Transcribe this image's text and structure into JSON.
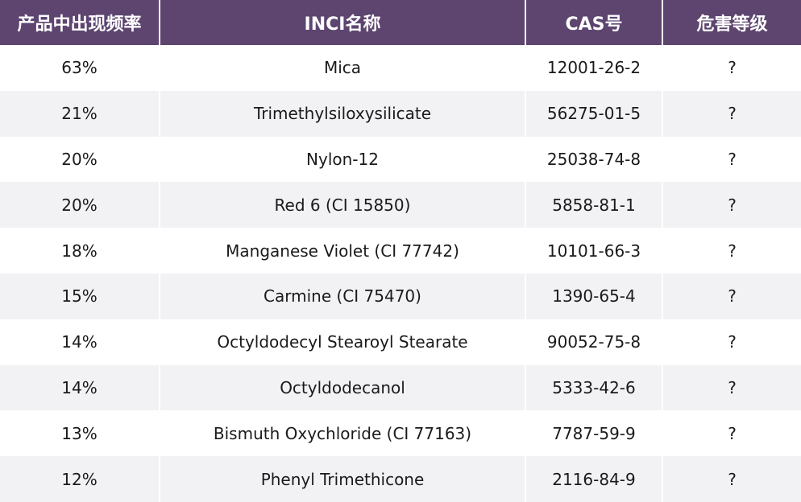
{
  "table": {
    "headers": {
      "frequency": "产品中出现频率",
      "inci": "INCI名称",
      "cas": "CAS号",
      "hazard": "危害等级"
    },
    "rows": [
      {
        "frequency": "63%",
        "inci": "Mica",
        "cas": "12001-26-2",
        "hazard": "?"
      },
      {
        "frequency": "21%",
        "inci": "Trimethylsiloxysilicate",
        "cas": "56275-01-5",
        "hazard": "?"
      },
      {
        "frequency": "20%",
        "inci": "Nylon-12",
        "cas": "25038-74-8",
        "hazard": "?"
      },
      {
        "frequency": "20%",
        "inci": "Red 6 (CI 15850)",
        "cas": "5858-81-1",
        "hazard": "?"
      },
      {
        "frequency": "18%",
        "inci": "Manganese Violet (CI 77742)",
        "cas": "10101-66-3",
        "hazard": "?"
      },
      {
        "frequency": "15%",
        "inci": "Carmine (CI 75470)",
        "cas": "1390-65-4",
        "hazard": "?"
      },
      {
        "frequency": "14%",
        "inci": "Octyldodecyl Stearoyl Stearate",
        "cas": "90052-75-8",
        "hazard": "?"
      },
      {
        "frequency": "14%",
        "inci": "Octyldodecanol",
        "cas": "5333-42-6",
        "hazard": "?"
      },
      {
        "frequency": "13%",
        "inci": "Bismuth Oxychloride (CI 77163)",
        "cas": "7787-59-9",
        "hazard": "?"
      },
      {
        "frequency": "12%",
        "inci": "Phenyl Trimethicone",
        "cas": "2116-84-9",
        "hazard": "?"
      }
    ]
  },
  "colors": {
    "header_background": "#5d4570",
    "header_text": "#ffffff",
    "row_alt_background": "#f2f1f4",
    "row_background": "#ffffff"
  }
}
